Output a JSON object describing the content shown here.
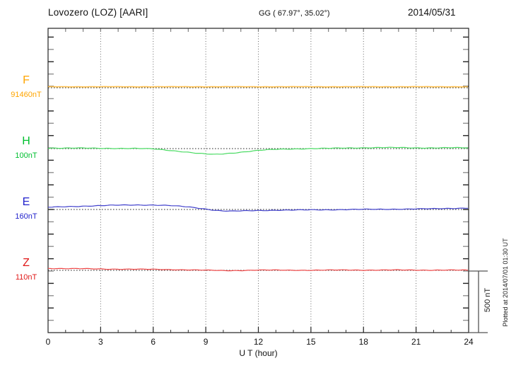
{
  "header": {
    "station": "Lovozero (LOZ)  [AARI]",
    "coords": "GG ( 67.97°,  35.02°)",
    "date": "2014/05/31"
  },
  "scale_bar": {
    "label": "500 nT"
  },
  "footer_note": "Plotted at 2014/07/01 01:30 UT",
  "chart_data": {
    "type": "line",
    "title": "Lovozero (LOZ) [AARI] magnetogram 2014/05/31",
    "xlabel": "U T (hour)",
    "x_range": [
      0,
      24
    ],
    "x_major_ticks": [
      0,
      3,
      6,
      9,
      12,
      15,
      18,
      21,
      24
    ],
    "x_minor_step_hours": 1,
    "y_division_nT": 100,
    "scale_bar_nT": 500,
    "grid": "vertical-dotted-every-3h",
    "baseline_style": "black-dotted-at-each-component-baseline",
    "series": [
      {
        "name": "F",
        "baseline_label": "91460nT",
        "baseline_nT": 91460,
        "label_color": "#FFA500",
        "curve_color": "#FFC04D",
        "x": [
          0,
          6,
          12,
          18,
          24
        ],
        "offset_nT": [
          8,
          8,
          8,
          8,
          8
        ]
      },
      {
        "name": "H",
        "baseline_label": "100nT",
        "baseline_nT": 100,
        "label_color": "#00C030",
        "curve_color": "#4ADB63",
        "x": [
          0,
          1,
          2,
          3,
          4,
          5,
          6,
          6.5,
          7,
          7.5,
          8,
          8.5,
          9,
          9.5,
          10,
          10.5,
          11,
          11.5,
          12,
          12.5,
          13,
          14,
          15,
          16,
          17,
          18,
          19,
          20,
          21,
          22,
          23,
          24
        ],
        "offset_nT": [
          5,
          4,
          4,
          3,
          2,
          1,
          -2,
          -8,
          -15,
          -22,
          -30,
          -38,
          -44,
          -47,
          -42,
          -36,
          -29,
          -22,
          -15,
          -10,
          -6,
          -2,
          0,
          2,
          5,
          7,
          8,
          8,
          6,
          6,
          7,
          6
        ]
      },
      {
        "name": "E",
        "baseline_label": "160nT",
        "baseline_nT": 160,
        "label_color": "#2222CC",
        "curve_color": "#4040CC",
        "x": [
          0,
          0.5,
          1,
          2,
          3,
          4,
          5,
          6,
          7,
          8,
          8.5,
          9,
          9.5,
          10,
          10.5,
          11,
          12,
          13,
          14,
          15,
          16,
          17,
          18,
          19,
          20,
          21,
          22,
          23,
          24
        ],
        "offset_nT": [
          18,
          20,
          23,
          27,
          31,
          35,
          37,
          36,
          31,
          21,
          13,
          4,
          -6,
          -12,
          -14,
          -12,
          -8,
          -6,
          -5,
          -3,
          -2,
          -1,
          1,
          2,
          3,
          4,
          6,
          9,
          12
        ]
      },
      {
        "name": "Z",
        "baseline_label": "110nT",
        "baseline_nT": 110,
        "label_color": "#E01818",
        "curve_color": "#EE4444",
        "x": [
          0,
          1,
          2,
          3,
          4,
          5,
          6,
          7,
          8,
          9,
          10,
          11,
          12,
          13,
          14,
          15,
          16,
          17,
          18,
          19,
          20,
          21,
          22,
          23,
          24
        ],
        "offset_nT": [
          16,
          14,
          13,
          11,
          10,
          9,
          8,
          6,
          4,
          1,
          -2,
          -1,
          2,
          2,
          1,
          1,
          2,
          3,
          2,
          2,
          3,
          2,
          2,
          2,
          1
        ]
      }
    ]
  }
}
